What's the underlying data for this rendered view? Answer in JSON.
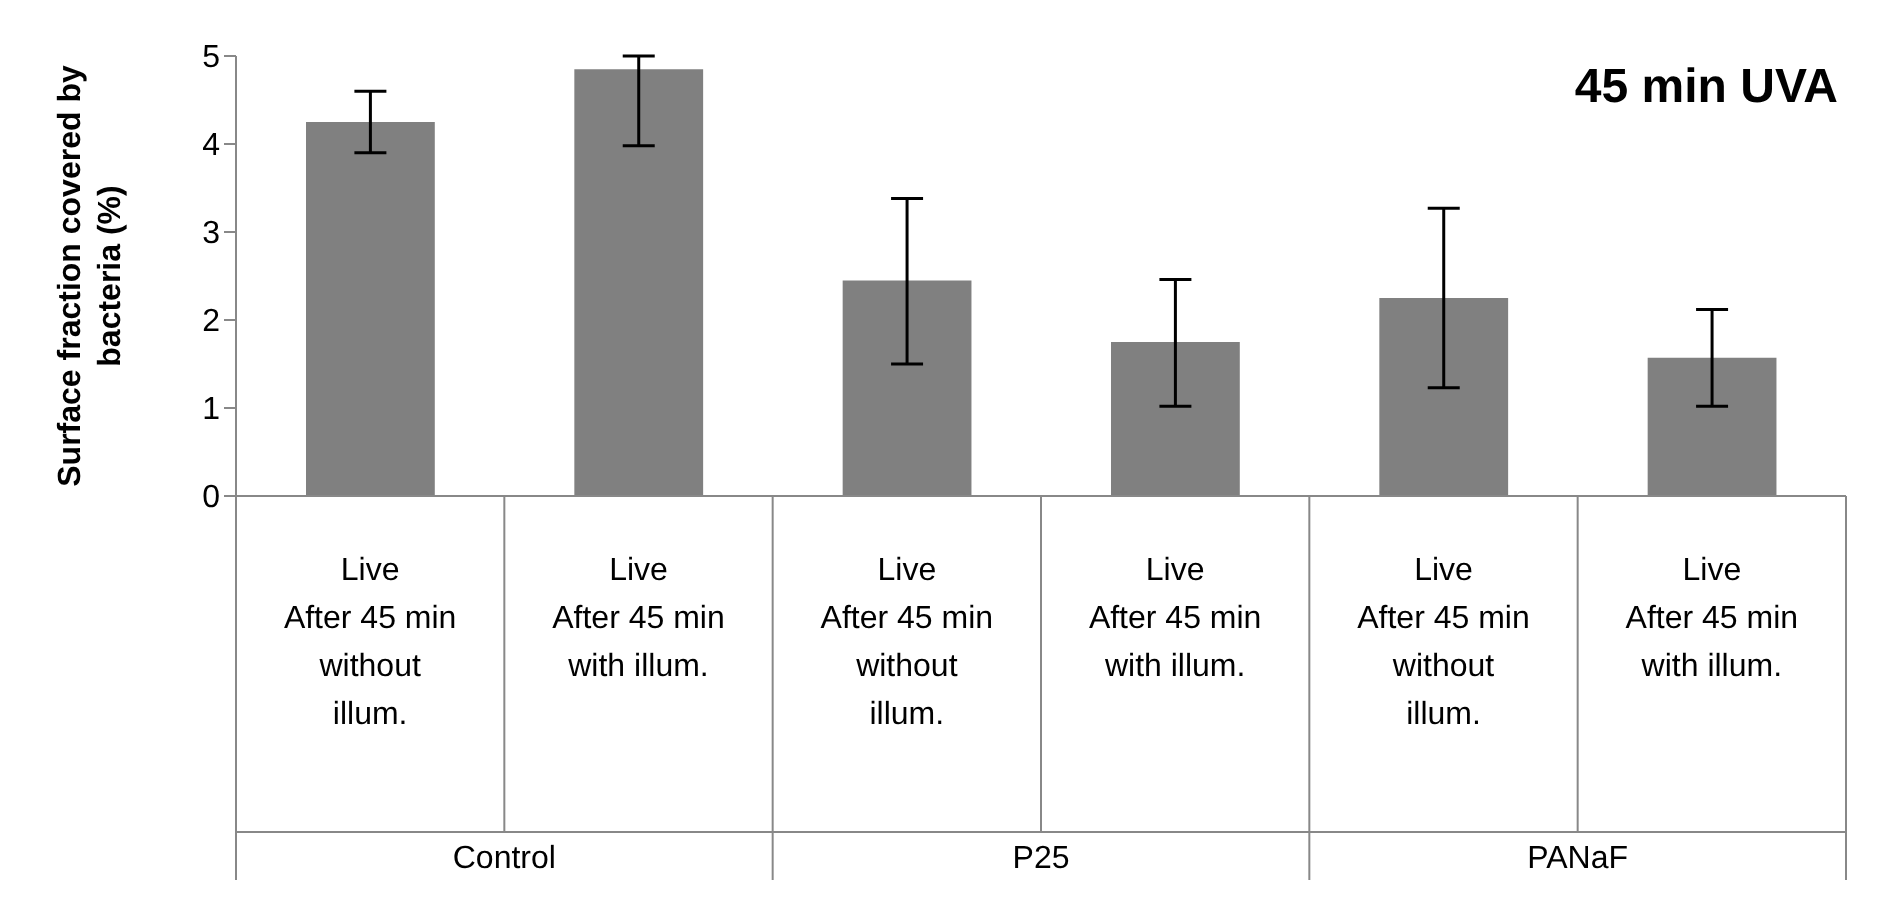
{
  "chart_data": {
    "type": "bar",
    "title": "45 min UVA",
    "ylabel": "Surface fraction covered by bacteria (%)",
    "categories": [
      "Live\nAfter 45 min without illum.",
      "Live\nAfter 45 min with illum.",
      "Live\nAfter 45 min without illum.",
      "Live\nAfter 45 min with illum.",
      "Live\nAfter 45 min without illum.",
      "Live\nAfter 45 min with illum."
    ],
    "values": [
      4.25,
      4.85,
      2.45,
      1.75,
      2.25,
      1.57
    ],
    "errors": [
      [
        3.9,
        4.6
      ],
      [
        3.98,
        5.0
      ],
      [
        1.5,
        3.38
      ],
      [
        1.02,
        2.46
      ],
      [
        1.23,
        3.27
      ],
      [
        1.02,
        2.12
      ]
    ],
    "color": "#808080",
    "ylim": [
      0,
      5
    ],
    "yticks": [
      0,
      1,
      2,
      3,
      4,
      5
    ],
    "annotations": [
      "Control",
      "P25",
      "PANaF"
    ]
  }
}
